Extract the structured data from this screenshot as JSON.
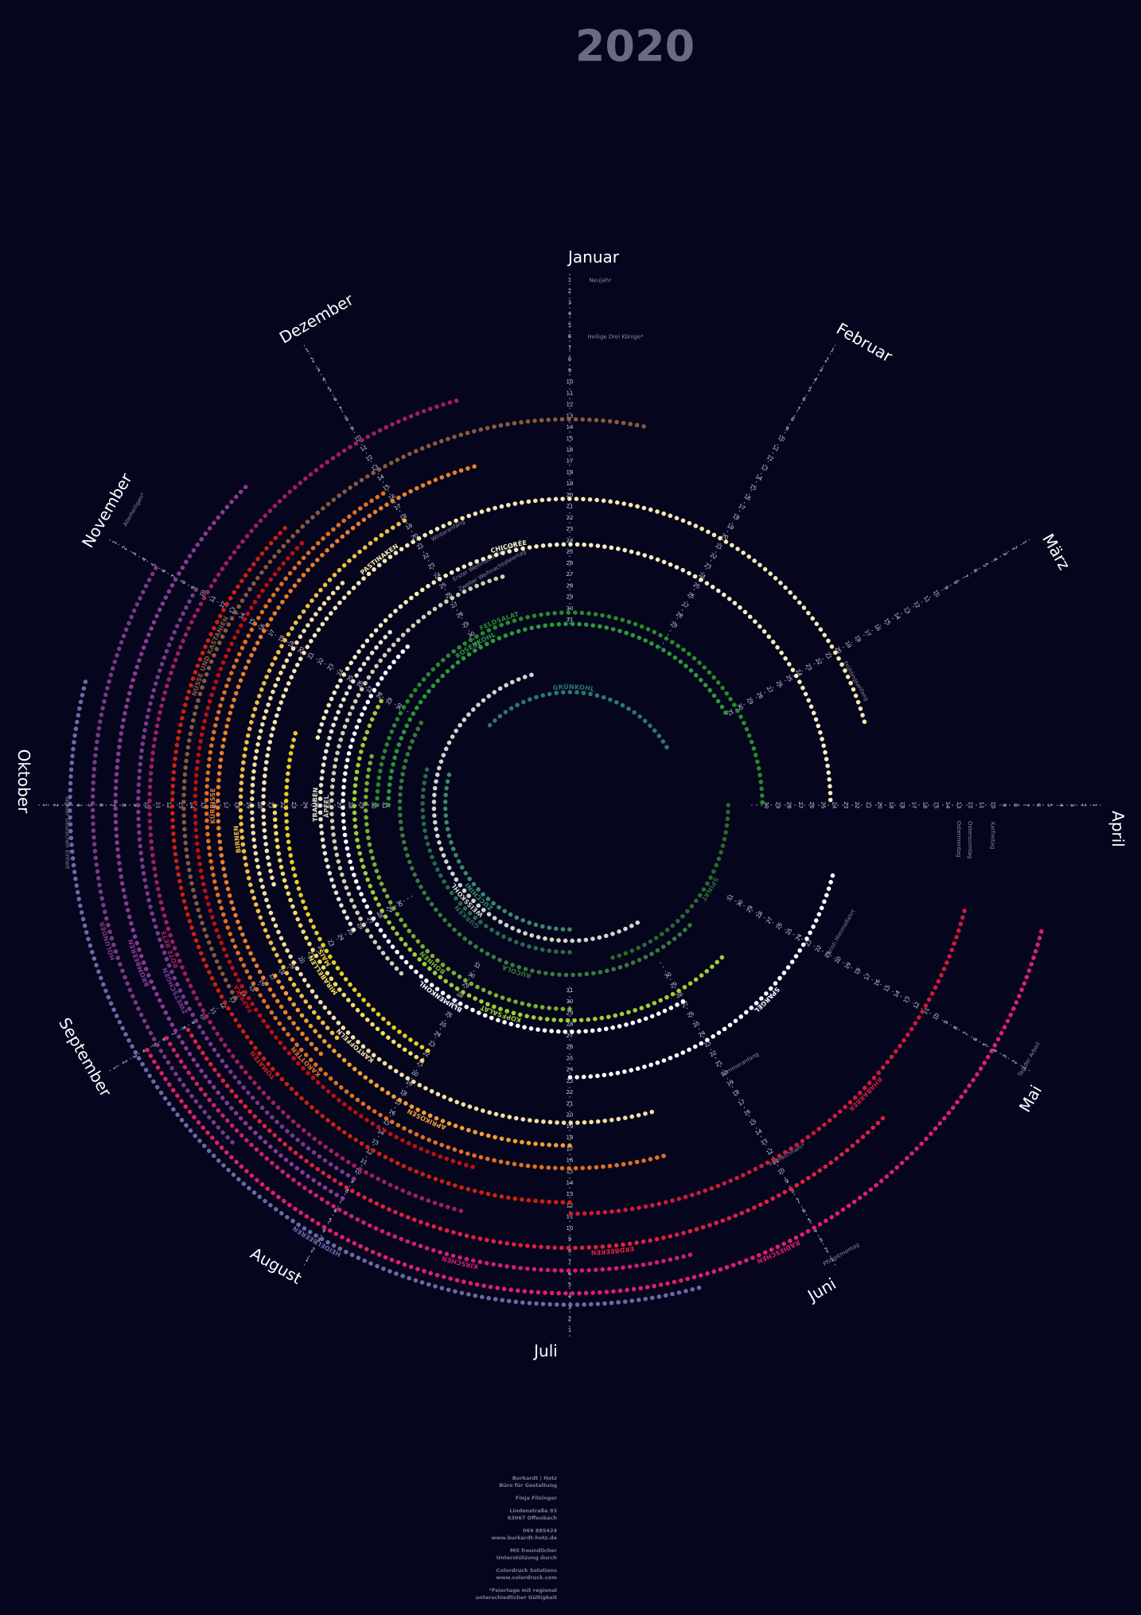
{
  "title": "2020",
  "day_numbers": [
    1,
    2,
    3,
    4,
    5,
    6,
    7,
    8,
    9,
    10,
    11,
    12,
    13,
    14,
    15,
    16,
    17,
    18,
    19,
    20,
    21,
    22,
    23,
    24,
    25,
    26,
    27,
    28,
    29,
    30,
    31
  ],
  "months": [
    {
      "name": "Januar",
      "length": 31
    },
    {
      "name": "Februar",
      "length": 29
    },
    {
      "name": "März",
      "length": 31
    },
    {
      "name": "April",
      "length": 30
    },
    {
      "name": "Mai",
      "length": 31
    },
    {
      "name": "Juni",
      "length": 30
    },
    {
      "name": "Juli",
      "length": 31
    },
    {
      "name": "August",
      "length": 31
    },
    {
      "name": "September",
      "length": 30
    },
    {
      "name": "Oktober",
      "length": 31
    },
    {
      "name": "November",
      "length": 30
    },
    {
      "name": "Dezember",
      "length": 31
    }
  ],
  "holidays": [
    {
      "name": "Neujahr",
      "month": 0,
      "day": 1
    },
    {
      "name": "Heilige Drei Könige*",
      "month": 0,
      "day": 6
    },
    {
      "name": "Frühlingsanfang",
      "month": 2,
      "day": 20
    },
    {
      "name": "Karfreitag",
      "month": 3,
      "day": 10
    },
    {
      "name": "Ostersonntag",
      "month": 3,
      "day": 12
    },
    {
      "name": "Ostermontag",
      "month": 3,
      "day": 13
    },
    {
      "name": "Tag der Arbeit",
      "month": 4,
      "day": 1
    },
    {
      "name": "Christi Himmelfahrt",
      "month": 4,
      "day": 21
    },
    {
      "name": "Pfingstmontag",
      "month": 5,
      "day": 1
    },
    {
      "name": "Fronleichnam*",
      "month": 5,
      "day": 11
    },
    {
      "name": "Sommeranfang",
      "month": 5,
      "day": 20
    },
    {
      "name": "Tag der Deutschen Einheit",
      "month": 9,
      "day": 3
    },
    {
      "name": "Allerheiligen*",
      "month": 10,
      "day": 1
    },
    {
      "name": "Winteranfang",
      "month": 11,
      "day": 21
    },
    {
      "name": "Erster Weihnachtsfeiertag",
      "month": 11,
      "day": 25
    },
    {
      "name": "Zweiter Weihnachtsfeiertag",
      "month": 11,
      "day": 26
    }
  ],
  "crops": [
    {
      "name": "HEIDELBEEREN",
      "color": "#6a6aa8",
      "from": 5.5,
      "to": 9.5
    },
    {
      "name": "RADIESCHEN",
      "color": "#e0206a",
      "from": 3.5,
      "to": 8.0
    },
    {
      "name": "HOLUNDER",
      "color": "#7a3a80",
      "from": 7.5,
      "to": 10.0
    },
    {
      "name": "KIRSCHEN",
      "color": "#d0206a",
      "from": 5.5,
      "to": 8.0
    },
    {
      "name": "BROMBEEREN",
      "color": "#8a3a90",
      "from": 7.0,
      "to": 10.5
    },
    {
      "name": "ERDBEEREN",
      "color": "#e02040",
      "from": 4.5,
      "to": 8.0
    },
    {
      "name": "ZWETSCHGEN",
      "color": "#7a3a8a",
      "from": 7.0,
      "to": 10.0
    },
    {
      "name": "ROTE BETE",
      "color": "#a0205a",
      "from": 6.5,
      "to": 11.5
    },
    {
      "name": "RHABARBER",
      "color": "#d01a3a",
      "from": 3.5,
      "to": 6.0
    },
    {
      "name": "TOMATEN",
      "color": "#d02010",
      "from": 6.0,
      "to": 10.5
    },
    {
      "name": "NÜSSE UND KASTANIEN",
      "color": "#8a5a3a",
      "from": 8.0,
      "to": 0.4
    },
    {
      "name": "PAPRIKA",
      "color": "#c01010",
      "from": 6.5,
      "to": 10.5
    },
    {
      "name": "KAROTTEN",
      "color": "#e07020",
      "from": 5.5,
      "to": 11.0
    },
    {
      "name": "KÜRBISSE",
      "color": "#e8802a",
      "from": 7.5,
      "to": 11.5
    },
    {
      "name": "APRIKOSEN",
      "color": "#f0a030",
      "from": 6.0,
      "to": 8.0
    },
    {
      "name": "BIRNEN",
      "color": "#f0c040",
      "from": 7.5,
      "to": 11.0
    },
    {
      "name": "KARTOFFELN",
      "color": "#f5e0a0",
      "from": 5.5,
      "to": 10.5
    },
    {
      "name": "PASTINAKEN",
      "color": "#f5e8b0",
      "from": 8.5,
      "to": 2.5
    },
    {
      "name": "MIRABELLEN",
      "color": "#f0e060",
      "from": 7.0,
      "to": 9.0
    },
    {
      "name": "MAIS",
      "color": "#e8d020",
      "from": 7.0,
      "to": 9.5
    },
    {
      "name": "SPARGEL",
      "color": "#ffffff",
      "from": 3.5,
      "to": 6.0
    },
    {
      "name": "CHICORÉE",
      "color": "#f5eec0",
      "from": 9.5,
      "to": 3.0
    },
    {
      "name": "TRAUBEN",
      "color": "#e8e8d0",
      "from": 8.0,
      "to": 10.5
    },
    {
      "name": "ÄPFEL",
      "color": "#d0d0b0",
      "from": 7.5,
      "to": 11.5
    },
    {
      "name": "BLUMENKOHL",
      "color": "#ffffff",
      "from": 5.0,
      "to": 10.5
    },
    {
      "name": "KOPFSALAT",
      "color": "#a0d030",
      "from": 4.5,
      "to": 10.0
    },
    {
      "name": "BOHNEN",
      "color": "#7ab030",
      "from": 6.0,
      "to": 9.5
    },
    {
      "name": "FELDSALAT",
      "color": "#2a8a2a",
      "from": 9.0,
      "to": 3.0
    },
    {
      "name": "ROSENKOHL",
      "color": "#2a9a3a",
      "from": 9.0,
      "to": 2.0
    },
    {
      "name": "RUCOLA",
      "color": "#3a7a3a",
      "from": 4.5,
      "to": 10.0
    },
    {
      "name": "SPINAT",
      "color": "#2a6a2a",
      "from": 3.0,
      "to": 5.5
    },
    {
      "name": "GURKEN",
      "color": "#2a6a4a",
      "from": 6.0,
      "to": 9.5
    },
    {
      "name": "WEISSKOHL",
      "color": "#d0d8c8",
      "from": 5.0,
      "to": 11.5
    },
    {
      "name": "ZUCCHINI",
      "color": "#3a8a6a",
      "from": 6.0,
      "to": 9.5
    },
    {
      "name": "GRÜNKOHL",
      "color": "#2a7a6a",
      "from": 10.5,
      "to": 2.0
    }
  ],
  "footer": [
    "Burkardt | Hotz",
    "Büro für Gestaltung",
    "Finja Filzinger",
    "Lindenstraße 83",
    "63067 Offenbach",
    "069 885424",
    "www.burkardt-hotz.de",
    "Mit freundlicher",
    "Unterstützung durch",
    "Colordruck Solutions",
    "www.colordruck.com",
    "*Feiertage mit regional",
    "unterschiedlicher Gültigkeit"
  ]
}
